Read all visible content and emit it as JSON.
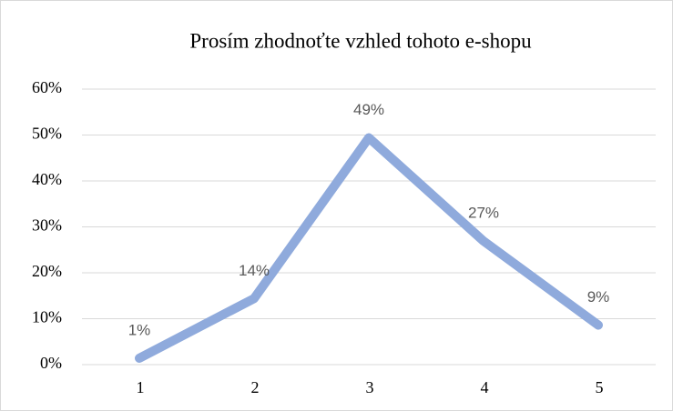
{
  "chart_data": {
    "type": "line",
    "title": "Prosím zhodnoťte vzhled tohoto e-shopu",
    "categories": [
      "1",
      "2",
      "3",
      "4",
      "5"
    ],
    "values": [
      1.4,
      14.4,
      49.4,
      26.9,
      8.6
    ],
    "value_labels": [
      "1%",
      "14%",
      "49%",
      "27%",
      "9%"
    ],
    "color": "#8faadc",
    "ylim": [
      0,
      60
    ],
    "yticks": [
      {
        "value": 0,
        "label": "0%"
      },
      {
        "value": 10,
        "label": "10%"
      },
      {
        "value": 20,
        "label": "20%"
      },
      {
        "value": 30,
        "label": "30%"
      },
      {
        "value": 40,
        "label": "40%"
      },
      {
        "value": 50,
        "label": "50%"
      },
      {
        "value": 60,
        "label": "60%"
      }
    ],
    "grid": true
  }
}
